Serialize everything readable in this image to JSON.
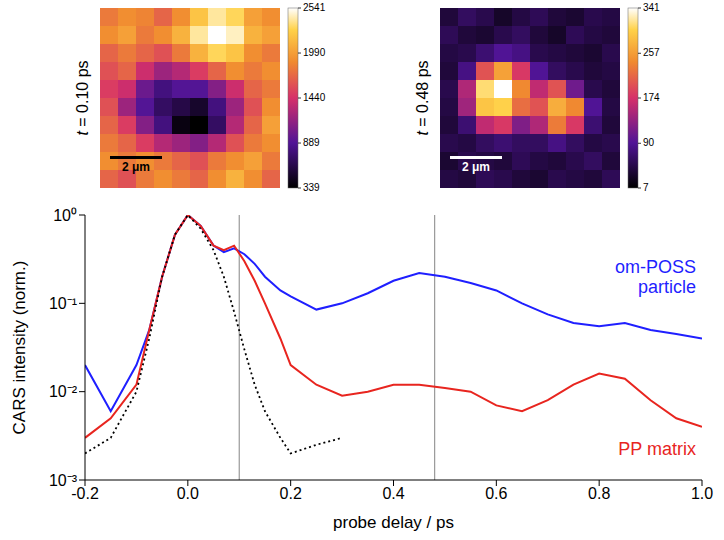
{
  "chart_data": [
    {
      "type": "heatmap",
      "title": "t = 0.10 ps",
      "annotations": [
        "2 μm"
      ],
      "tick_labels": false,
      "cells": [
        [
          1800,
          1900,
          1850,
          1700,
          1900,
          2200,
          2400,
          2300,
          2000,
          1900
        ],
        [
          1900,
          2000,
          1800,
          1900,
          2100,
          2400,
          2541,
          2450,
          2100,
          2000
        ],
        [
          1700,
          1800,
          1700,
          1600,
          1800,
          2100,
          2300,
          2200,
          1900,
          1800
        ],
        [
          1600,
          1700,
          1400,
          1200,
          1300,
          1500,
          1700,
          1900,
          1800,
          1900
        ],
        [
          1500,
          1400,
          1000,
          800,
          900,
          900,
          1100,
          1400,
          1700,
          1800
        ],
        [
          1600,
          1200,
          900,
          700,
          600,
          500,
          800,
          1200,
          1600,
          1900
        ],
        [
          1700,
          1500,
          1100,
          800,
          400,
          339,
          700,
          1300,
          1700,
          2000
        ],
        [
          1800,
          1700,
          1500,
          1300,
          1200,
          1100,
          1300,
          1600,
          1800,
          1900
        ],
        [
          1900,
          1800,
          1900,
          1800,
          1700,
          1600,
          1800,
          1900,
          2000,
          1800
        ],
        [
          1700,
          1600,
          1800,
          1900,
          1800,
          1700,
          1900,
          2100,
          1900,
          1700
        ]
      ],
      "colorbar": {
        "range": [
          339,
          2541
        ],
        "ticks": [
          339,
          889,
          1440,
          1990,
          2541
        ]
      }
    },
    {
      "type": "heatmap",
      "title": "t = 0.48 ps",
      "annotations": [
        "2 μm"
      ],
      "tick_labels": false,
      "cells": [
        [
          40,
          60,
          50,
          30,
          45,
          55,
          40,
          35,
          50,
          45
        ],
        [
          55,
          40,
          35,
          50,
          60,
          40,
          30,
          55,
          45,
          40
        ],
        [
          45,
          50,
          70,
          90,
          80,
          50,
          45,
          40,
          35,
          50
        ],
        [
          40,
          80,
          200,
          260,
          180,
          90,
          60,
          50,
          40,
          45
        ],
        [
          50,
          150,
          310,
          341,
          240,
          160,
          200,
          110,
          50,
          40
        ],
        [
          45,
          140,
          290,
          300,
          220,
          200,
          270,
          240,
          90,
          45
        ],
        [
          40,
          70,
          160,
          180,
          120,
          150,
          230,
          180,
          70,
          40
        ],
        [
          50,
          45,
          60,
          70,
          60,
          60,
          80,
          60,
          45,
          50
        ],
        [
          35,
          50,
          45,
          40,
          55,
          45,
          40,
          50,
          60,
          40
        ],
        [
          45,
          40,
          55,
          50,
          40,
          35,
          50,
          45,
          40,
          55
        ]
      ],
      "colorbar": {
        "range": [
          7,
          341
        ],
        "ticks": [
          7,
          90,
          174,
          257,
          341
        ]
      }
    },
    {
      "type": "line",
      "log": "y",
      "xlabel": "probe delay / ps",
      "ylabel": "CARS intensity (norm.)",
      "x": [
        -0.2,
        -0.15,
        -0.1,
        -0.075,
        -0.05,
        -0.025,
        0,
        0.025,
        0.05,
        0.07,
        0.09,
        0.11,
        0.13,
        0.15,
        0.18,
        0.2,
        0.25,
        0.3,
        0.35,
        0.4,
        0.45,
        0.5,
        0.55,
        0.6,
        0.65,
        0.7,
        0.75,
        0.8,
        0.85,
        0.9,
        0.95,
        1.0
      ],
      "xlim": [
        -0.2,
        1.0
      ],
      "xticks": [
        -0.2,
        {
          "value": 0,
          "label": "0.0"
        },
        0.2,
        0.4,
        0.6,
        0.8,
        {
          "value": 1,
          "label": "1.0"
        }
      ],
      "ylim": [
        0.001,
        1
      ],
      "yticks": [
        {
          "value": 0.001,
          "label": "10⁻³"
        },
        {
          "value": 0.01,
          "label": "10⁻²"
        },
        {
          "value": 0.1,
          "label": "10⁻¹"
        },
        {
          "value": 1,
          "label": "10⁰"
        }
      ],
      "reference_lines": [
        0.1,
        0.48
      ],
      "series": [
        {
          "name": "om-POSS particle",
          "color": "#1f1fff",
          "values": [
            0.02,
            0.006,
            0.02,
            0.05,
            0.2,
            0.6,
            1.0,
            0.75,
            0.45,
            0.38,
            0.42,
            0.36,
            0.28,
            0.2,
            0.14,
            0.12,
            0.085,
            0.1,
            0.13,
            0.18,
            0.22,
            0.2,
            0.17,
            0.14,
            0.1,
            0.075,
            0.06,
            0.055,
            0.06,
            0.05,
            0.045,
            0.04
          ]
        },
        {
          "name": "PP matrix",
          "color": "#e8251f",
          "values": [
            0.003,
            0.005,
            0.012,
            0.05,
            0.2,
            0.6,
            1.0,
            0.75,
            0.45,
            0.4,
            0.45,
            0.3,
            0.18,
            0.1,
            0.04,
            0.02,
            0.012,
            0.009,
            0.01,
            0.012,
            0.012,
            0.011,
            0.01,
            0.007,
            0.006,
            0.008,
            0.012,
            0.016,
            0.014,
            0.008,
            0.005,
            0.004
          ]
        },
        {
          "color": "#000000",
          "line_style": "dotted",
          "values": [
            0.002,
            0.003,
            0.01,
            0.04,
            0.2,
            0.6,
            1.0,
            0.7,
            0.4,
            0.2,
            0.08,
            0.03,
            0.012,
            0.006,
            0.003,
            0.002,
            0.0025,
            0.003,
            null,
            null,
            null,
            null,
            null,
            null,
            null,
            null,
            null,
            null,
            null,
            null,
            null,
            null
          ]
        }
      ]
    }
  ]
}
